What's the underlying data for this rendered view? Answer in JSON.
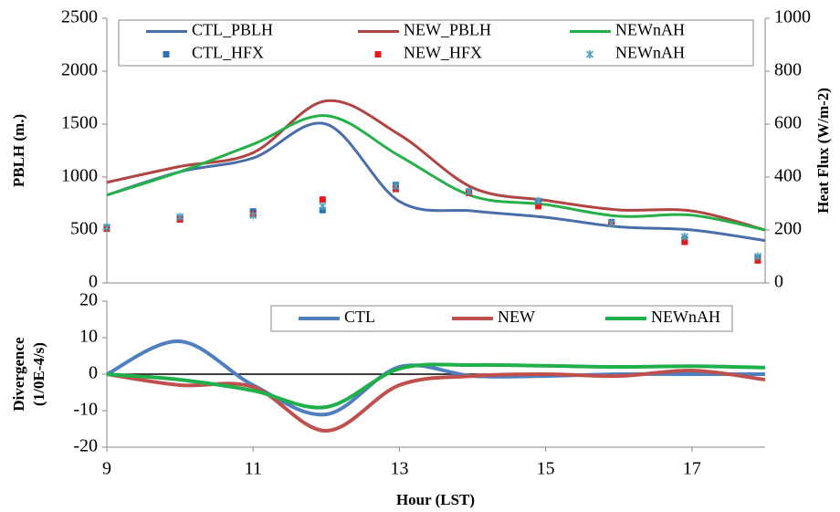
{
  "chart_data": [
    {
      "type": "combo",
      "ylabel": "PBLH (m.)",
      "y2label": "Heat Flux (W/m-2)",
      "x": [
        9,
        10,
        11,
        12,
        13,
        14,
        15,
        16,
        17,
        18
      ],
      "xlim": [
        9,
        18
      ],
      "ylim": [
        0,
        2500
      ],
      "yticks": [
        0,
        500,
        1000,
        1500,
        2000,
        2500
      ],
      "y2lim": [
        0,
        1000
      ],
      "y2ticks": [
        0,
        200,
        400,
        600,
        800,
        1000
      ],
      "series": [
        {
          "name": "CTL_PBLH",
          "kind": "line",
          "color": "#4a6fa8",
          "values": [
            830,
            1050,
            1180,
            1500,
            770,
            680,
            620,
            530,
            500,
            400
          ]
        },
        {
          "name": "NEW_PBLH",
          "kind": "line",
          "color": "#b04440",
          "values": [
            950,
            1100,
            1230,
            1720,
            1400,
            900,
            780,
            690,
            680,
            500
          ]
        },
        {
          "name": "NEWnAH",
          "kind": "line",
          "color": "#25b04a",
          "values": [
            830,
            1050,
            1310,
            1580,
            1200,
            820,
            740,
            630,
            640,
            500
          ]
        },
        {
          "name": "CTL_HFX",
          "kind": "scatter",
          "marker": "square",
          "axis": "y2",
          "color": "#2a73b4",
          "x": [
            9,
            10,
            11,
            11.95,
            12.95,
            13.95,
            14.9,
            15.9,
            16.9,
            17.9
          ],
          "values": [
            210,
            245,
            270,
            275,
            370,
            345,
            305,
            230,
            165,
            95
          ]
        },
        {
          "name": "NEW_HFX",
          "kind": "scatter",
          "marker": "square",
          "axis": "y2",
          "color": "#e31a1c",
          "x": [
            9,
            10,
            11,
            11.95,
            12.95,
            13.95,
            14.9,
            15.9,
            16.9,
            17.9
          ],
          "values": [
            205,
            240,
            260,
            315,
            355,
            340,
            290,
            225,
            155,
            85
          ]
        },
        {
          "name": "NEWnAH",
          "kind": "scatter",
          "marker": "x",
          "axis": "y2",
          "color": "#4aa3bd",
          "x": [
            9,
            10,
            11,
            11.95,
            12.95,
            13.95,
            14.9,
            15.9,
            16.9,
            17.9
          ],
          "values": [
            210,
            250,
            255,
            290,
            365,
            345,
            310,
            225,
            175,
            100
          ]
        }
      ]
    },
    {
      "type": "line",
      "ylabel": [
        "Divergence",
        "(1/0E-4/s)"
      ],
      "xlabel": "Hour (LST)",
      "x": [
        9,
        10,
        11,
        12,
        13,
        14,
        15,
        16,
        17,
        18
      ],
      "xlim": [
        9,
        18
      ],
      "xticks": [
        9,
        11,
        13,
        15,
        17
      ],
      "ylim": [
        -20,
        20
      ],
      "yticks": [
        20,
        10,
        0,
        -10,
        -20
      ],
      "zero_line": true,
      "series": [
        {
          "name": "CTL",
          "color": "#4f7fbf",
          "values": [
            0,
            9,
            -3,
            -11,
            2,
            -0.5,
            -0.5,
            0,
            0,
            0
          ]
        },
        {
          "name": "NEW",
          "color": "#c0504d",
          "values": [
            0,
            -3,
            -3.5,
            -15.5,
            -3,
            -0.5,
            0,
            -0.5,
            1,
            -1.5
          ]
        },
        {
          "name": "NEWnAH",
          "color": "#1fb04c",
          "values": [
            0,
            -1.5,
            -4.5,
            -9,
            1.5,
            2.5,
            2.3,
            2,
            2.2,
            1.8
          ]
        }
      ]
    }
  ]
}
